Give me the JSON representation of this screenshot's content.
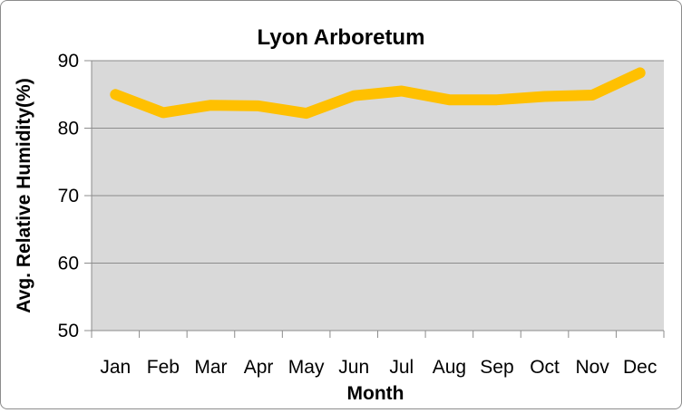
{
  "chart_data": {
    "type": "line",
    "title": "Lyon Arboretum",
    "xlabel": "Month",
    "ylabel": "Avg. Relative Humidity(%)",
    "categories": [
      "Jan",
      "Feb",
      "Mar",
      "Apr",
      "May",
      "Jun",
      "Jul",
      "Aug",
      "Sep",
      "Oct",
      "Nov",
      "Dec"
    ],
    "series": [
      {
        "values": [
          85.0,
          82.3,
          83.4,
          83.3,
          82.2,
          84.8,
          85.5,
          84.2,
          84.2,
          84.7,
          84.9,
          88.2
        ]
      }
    ],
    "ylim": [
      50,
      90
    ],
    "yticks": [
      50,
      60,
      70,
      80,
      90
    ],
    "grid": true,
    "legend": "none",
    "colors": {
      "line": "#FFC000",
      "plot_background": "#D9D9D9",
      "gridline": "#8C8C8C"
    }
  }
}
